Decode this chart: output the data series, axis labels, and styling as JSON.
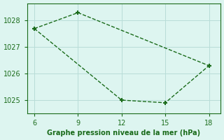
{
  "line1_x": [
    6,
    9,
    18
  ],
  "line1_y": [
    1027.7,
    1028.3,
    1026.3
  ],
  "line2_x": [
    6,
    12,
    15,
    18
  ],
  "line2_y": [
    1027.7,
    1025.0,
    1024.9,
    1026.3
  ],
  "xlim": [
    5.5,
    18.8
  ],
  "ylim": [
    1024.5,
    1028.65
  ],
  "xticks": [
    6,
    9,
    12,
    15,
    18
  ],
  "yticks": [
    1025,
    1026,
    1027,
    1028
  ],
  "line_color": "#1a6b1a",
  "bg_color": "#ddf5f0",
  "grid_color": "#b8ddd8",
  "xlabel": "Graphe pression niveau de la mer (hPa)",
  "xlabel_color": "#1a6b1a",
  "tick_color": "#1a6b1a",
  "marker": "+",
  "marker_size": 5,
  "linewidth": 1.0,
  "linestyle": "--"
}
